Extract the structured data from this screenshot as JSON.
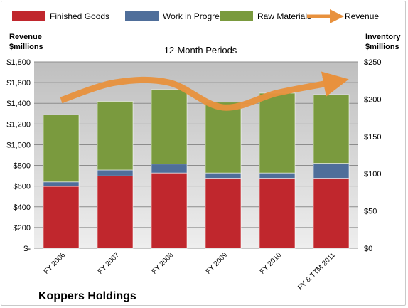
{
  "chart_data": {
    "type": "bar",
    "stacked": true,
    "title": "12-Month Periods",
    "categories": [
      "FY 2006",
      "FY 2007",
      "FY 2008",
      "FY 2009",
      "FY 2010",
      "FY & TTM 2011"
    ],
    "series": [
      {
        "name": "Finished Goods",
        "color": "#c0272d",
        "axis": "right",
        "values": [
          83,
          97,
          101,
          94,
          94,
          94
        ]
      },
      {
        "name": "Work in Progress",
        "color": "#4f6e9a",
        "axis": "right",
        "values": [
          6,
          8,
          12,
          7,
          7,
          20
        ]
      },
      {
        "name": "Raw Materials",
        "color": "#7a9a3e",
        "axis": "right",
        "values": [
          90,
          92,
          100,
          95,
          107,
          92
        ]
      }
    ],
    "line": {
      "name": "Revenue",
      "color": "#e8913d",
      "axis": "left",
      "values": [
        1430,
        1600,
        1600,
        1360,
        1500,
        1600
      ]
    },
    "left_axis": {
      "title_line1": "Revenue",
      "title_line2": "$millions",
      "ylim": [
        0,
        1800
      ],
      "ticks": [
        "$-",
        "$200",
        "$400",
        "$600",
        "$800",
        "$1,000",
        "$1,200",
        "$1,400",
        "$1,600",
        "$1,800"
      ]
    },
    "right_axis": {
      "title_line1": "Inventory",
      "title_line2": "$millions",
      "ylim": [
        0,
        250
      ],
      "ticks": [
        "$0",
        "$50",
        "$100",
        "$150",
        "$200",
        "$250"
      ]
    },
    "grid": true,
    "legend_position": "top",
    "company": "Koppers Holdings"
  }
}
